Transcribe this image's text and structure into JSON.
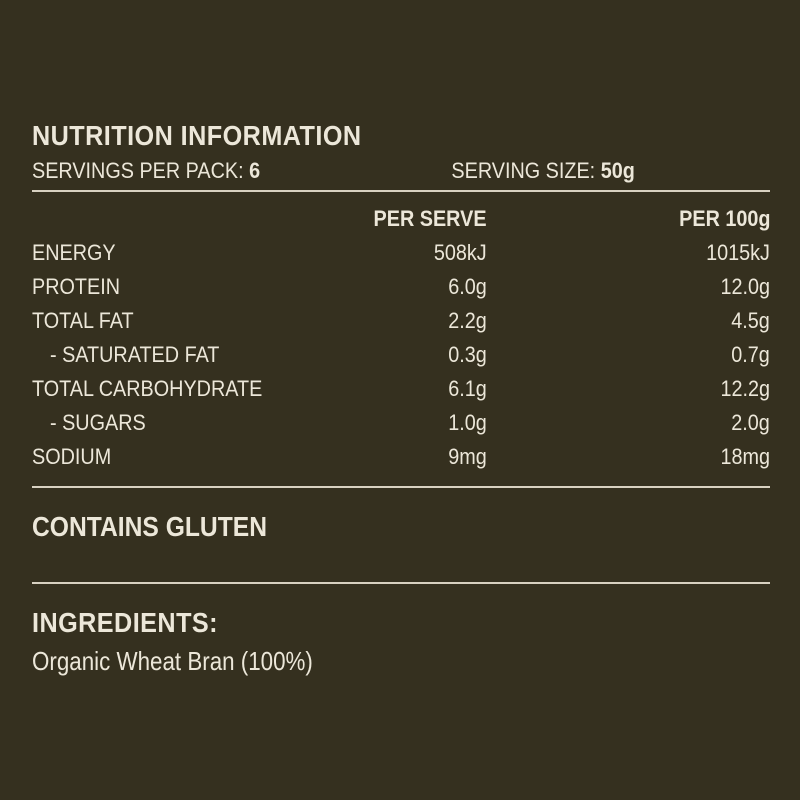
{
  "colors": {
    "background": "#35301f",
    "text": "#ece7d9",
    "rule": "#d8d1c1"
  },
  "header": {
    "title": "NUTRITION INFORMATION",
    "servings_label": "SERVINGS PER PACK:",
    "servings_value": "6",
    "serving_size_label": "SERVING SIZE:",
    "serving_size_value": "50g"
  },
  "table": {
    "headers": {
      "nutrient": "",
      "per_serve": "PER SERVE",
      "per_100g": "PER 100g"
    },
    "rows": [
      {
        "label": "ENERGY",
        "per_serve": "508kJ",
        "per_100g": "1015kJ"
      },
      {
        "label": "PROTEIN",
        "per_serve": "6.0g",
        "per_100g": "12.0g"
      },
      {
        "label": "TOTAL FAT",
        "per_serve": "2.2g",
        "per_100g": "4.5g"
      },
      {
        "label": "- SATURATED FAT",
        "per_serve": "0.3g",
        "per_100g": "0.7g"
      },
      {
        "label": "TOTAL CARBOHYDRATE",
        "per_serve": "6.1g",
        "per_100g": "12.2g"
      },
      {
        "label": "- SUGARS",
        "per_serve": "1.0g",
        "per_100g": "2.0g"
      },
      {
        "label": "SODIUM",
        "per_serve": "9mg",
        "per_100g": "18mg"
      }
    ]
  },
  "allergen": {
    "text": "CONTAINS GLUTEN"
  },
  "ingredients": {
    "title": "INGREDIENTS:",
    "text": "Organic Wheat Bran (100%)"
  }
}
